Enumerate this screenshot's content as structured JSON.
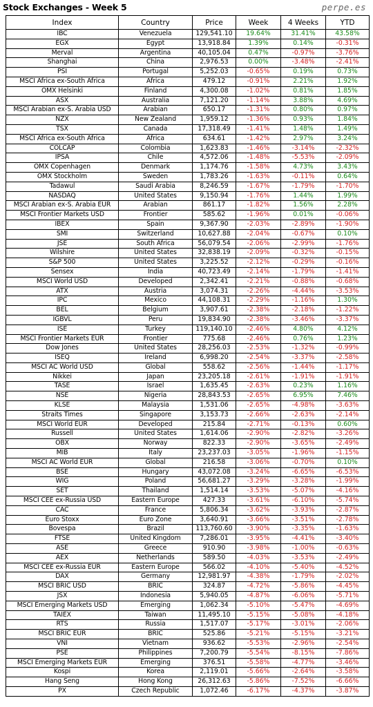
{
  "title": "Stock Exchanges - Week 5",
  "brand": "perpe.es",
  "columns": [
    "Index",
    "Country",
    "Price",
    "Week",
    "4 Weeks",
    "YTD"
  ],
  "rows": [
    [
      "IBC",
      "Venezuela",
      "129,541.10",
      "19.64%",
      "31.41%",
      "43.58%"
    ],
    [
      "EGX",
      "Egypt",
      "13,918.84",
      "1.39%",
      "0.14%",
      "-0.31%"
    ],
    [
      "Merval",
      "Argentina",
      "40,105.04",
      "0.47%",
      "-0.97%",
      "-3.76%"
    ],
    [
      "Shanghai",
      "China",
      "2,976.53",
      "0.00%",
      "-3.48%",
      "-2.41%"
    ],
    [
      "PSI",
      "Portugal",
      "5,252.03",
      "-0.65%",
      "0.19%",
      "0.73%"
    ],
    [
      "MSCI Africa ex-South Africa",
      "Africa",
      "479.12",
      "-0.91%",
      "2.21%",
      "1.92%"
    ],
    [
      "OMX Helsinki",
      "Finland",
      "4,300.08",
      "-1.02%",
      "0.81%",
      "1.85%"
    ],
    [
      "ASX",
      "Australia",
      "7,121.20",
      "-1.14%",
      "3.88%",
      "4.69%"
    ],
    [
      "MSCI Arabian ex-S. Arabia USD",
      "Arabian",
      "650.17",
      "-1.31%",
      "0.80%",
      "0.97%"
    ],
    [
      "NZX",
      "New Zealand",
      "1,959.12",
      "-1.36%",
      "0.93%",
      "1.84%"
    ],
    [
      "TSX",
      "Canada",
      "17,318.49",
      "-1.41%",
      "1.48%",
      "1.49%"
    ],
    [
      "MSCI Africa ex-South Africa",
      "Africa",
      "634.61",
      "-1.42%",
      "2.97%",
      "3.24%"
    ],
    [
      "COLCAP",
      "Colombia",
      "1,623.83",
      "-1.46%",
      "-3.14%",
      "-2.32%"
    ],
    [
      "IPSA",
      "Chile",
      "4,572.06",
      "-1.48%",
      "-5.53%",
      "-2.09%"
    ],
    [
      "OMX Copenhagen",
      "Denmark",
      "1,174.76",
      "-1.58%",
      "4.73%",
      "3.43%"
    ],
    [
      "OMX Stockholm",
      "Sweden",
      "1,783.26",
      "-1.63%",
      "-0.11%",
      "0.64%"
    ],
    [
      "Tadawul",
      "Saudi Arabia",
      "8,246.59",
      "-1.67%",
      "-1.79%",
      "-1.70%"
    ],
    [
      "NASDAQ",
      "United States",
      "9,150.94",
      "-1.76%",
      "1.44%",
      "1.99%"
    ],
    [
      "MSCI Arabian ex-S. Arabia EUR",
      "Arabian",
      "861.17",
      "-1.82%",
      "1.56%",
      "2.28%"
    ],
    [
      "MSCI Frontier Markets USD",
      "Frontier",
      "585.62",
      "-1.96%",
      "0.01%",
      "-0.06%"
    ],
    [
      "IBEX",
      "Spain",
      "9,367.90",
      "-2.03%",
      "-2.89%",
      "-1.90%"
    ],
    [
      "SMI",
      "Switzerland",
      "10,627.88",
      "-2.04%",
      "-0.67%",
      "0.10%"
    ],
    [
      "JSE",
      "South Africa",
      "56,079.54",
      "-2.06%",
      "-2.99%",
      "-1.76%"
    ],
    [
      "Wilshire",
      "United States",
      "32,838.19",
      "-2.09%",
      "-0.32%",
      "-0.15%"
    ],
    [
      "S&P 500",
      "United States",
      "3,225.52",
      "-2.12%",
      "-0.29%",
      "-0.16%"
    ],
    [
      "Sensex",
      "India",
      "40,723.49",
      "-2.14%",
      "-1.79%",
      "-1.41%"
    ],
    [
      "MSCI World USD",
      "Developed",
      "2,342.41",
      "-2.21%",
      "-0.88%",
      "-0.68%"
    ],
    [
      "ATX",
      "Austria",
      "3,074.31",
      "-2.26%",
      "-4.44%",
      "-3.53%"
    ],
    [
      "IPC",
      "Mexico",
      "44,108.31",
      "-2.29%",
      "-1.16%",
      "1.30%"
    ],
    [
      "BEL",
      "Belgium",
      "3,907.61",
      "-2.38%",
      "-2.18%",
      "-1.22%"
    ],
    [
      "IGBVL",
      "Peru",
      "19,834.90",
      "-2.38%",
      "-3.46%",
      "-3.37%"
    ],
    [
      "ISE",
      "Turkey",
      "119,140.10",
      "-2.46%",
      "4.80%",
      "4.12%"
    ],
    [
      "MSCI Frontier Markets EUR",
      "Frontier",
      "775.68",
      "-2.46%",
      "0.76%",
      "1.23%"
    ],
    [
      "Dow Jones",
      "United States",
      "28,256.03",
      "-2.53%",
      "-1.32%",
      "-0.99%"
    ],
    [
      "ISEQ",
      "Ireland",
      "6,998.20",
      "-2.54%",
      "-3.37%",
      "-2.58%"
    ],
    [
      "MSCI AC World USD",
      "Global",
      "558.62",
      "-2.56%",
      "-1.44%",
      "-1.17%"
    ],
    [
      "Nikkei",
      "Japan",
      "23,205.18",
      "-2.61%",
      "-1.91%",
      "-1.91%"
    ],
    [
      "TASE",
      "Israel",
      "1,635.45",
      "-2.63%",
      "0.23%",
      "1.16%"
    ],
    [
      "NSE",
      "Nigeria",
      "28,843.53",
      "-2.65%",
      "6.95%",
      "7.46%"
    ],
    [
      "KLSE",
      "Malaysia",
      "1,531.06",
      "-2.65%",
      "-4.98%",
      "-3.63%"
    ],
    [
      "Straits Times",
      "Singapore",
      "3,153.73",
      "-2.66%",
      "-2.63%",
      "-2.14%"
    ],
    [
      "MSCI World EUR",
      "Developed",
      "215.84",
      "-2.71%",
      "-0.13%",
      "0.60%"
    ],
    [
      "Russell",
      "United States",
      "1,614.06",
      "-2.90%",
      "-2.82%",
      "-3.26%"
    ],
    [
      "OBX",
      "Norway",
      "822.33",
      "-2.90%",
      "-3.65%",
      "-2.49%"
    ],
    [
      "MIB",
      "Italy",
      "23,237.03",
      "-3.05%",
      "-1.96%",
      "-1.15%"
    ],
    [
      "MSCI AC World EUR",
      "Global",
      "216.58",
      "-3.06%",
      "-0.70%",
      "0.10%"
    ],
    [
      "BSE",
      "Hungary",
      "43,072.08",
      "-3.24%",
      "-6.65%",
      "-6.53%"
    ],
    [
      "WIG",
      "Poland",
      "56,681.27",
      "-3.29%",
      "-3.28%",
      "-1.99%"
    ],
    [
      "SET",
      "Thailand",
      "1,514.14",
      "-3.53%",
      "-5.07%",
      "-4.16%"
    ],
    [
      "MSCI CEE ex-Russia USD",
      "Eastern Europe",
      "427.33",
      "-3.61%",
      "-6.10%",
      "-5.74%"
    ],
    [
      "CAC",
      "France",
      "5,806.34",
      "-3.62%",
      "-3.93%",
      "-2.87%"
    ],
    [
      "Euro Stoxx",
      "Euro Zone",
      "3,640.91",
      "-3.66%",
      "-3.51%",
      "-2.78%"
    ],
    [
      "Bovespa",
      "Brazil",
      "113,760.60",
      "-3.90%",
      "-3.35%",
      "-1.63%"
    ],
    [
      "FTSE",
      "United Kingdom",
      "7,286.01",
      "-3.95%",
      "-4.41%",
      "-3.40%"
    ],
    [
      "ASE",
      "Greece",
      "910.90",
      "-3.98%",
      "-1.00%",
      "-0.63%"
    ],
    [
      "AEX",
      "Netherlands",
      "589.50",
      "-4.03%",
      "-3.53%",
      "-2.49%"
    ],
    [
      "MSCI CEE ex-Russia EUR",
      "Eastern Europe",
      "566.02",
      "-4.10%",
      "-5.40%",
      "-4.52%"
    ],
    [
      "DAX",
      "Germany",
      "12,981.97",
      "-4.38%",
      "-1.79%",
      "-2.02%"
    ],
    [
      "MSCI BRIC USD",
      "BRIC",
      "324.87",
      "-4.72%",
      "-5.86%",
      "-4.45%"
    ],
    [
      "JSX",
      "Indonesia",
      "5,940.05",
      "-4.87%",
      "-6.06%",
      "-5.71%"
    ],
    [
      "MSCI Emerging Markets USD",
      "Emerging",
      "1,062.34",
      "-5.10%",
      "-5.47%",
      "-4.69%"
    ],
    [
      "TAIEX",
      "Taiwan",
      "11,495.10",
      "-5.15%",
      "-5.08%",
      "-4.18%"
    ],
    [
      "RTS",
      "Russia",
      "1,517.07",
      "-5.17%",
      "-3.01%",
      "-2.06%"
    ],
    [
      "MSCI BRIC EUR",
      "BRIC",
      "525.86",
      "-5.21%",
      "-5.15%",
      "-3.21%"
    ],
    [
      "VNI",
      "Vietnam",
      "936.62",
      "-5.53%",
      "-2.96%",
      "-2.54%"
    ],
    [
      "PSE",
      "Philippines",
      "7,200.79",
      "-5.54%",
      "-8.15%",
      "-7.86%"
    ],
    [
      "MSCI Emerging Markets EUR",
      "Emerging",
      "376.51",
      "-5.58%",
      "-4.77%",
      "-3.46%"
    ],
    [
      "Kospi",
      "Korea",
      "2,119.01",
      "-5.66%",
      "-2.64%",
      "-3.58%"
    ],
    [
      "Hang Seng",
      "Hong Kong",
      "26,312.63",
      "-5.86%",
      "-7.52%",
      "-6.66%"
    ],
    [
      "PX",
      "Czech Republic",
      "1,072.46",
      "-6.17%",
      "-4.37%",
      "-3.87%"
    ]
  ],
  "colors": {
    "positive": "#1a8a1a",
    "negative": "#d42020",
    "text": "#000000",
    "brand": "#666666"
  }
}
